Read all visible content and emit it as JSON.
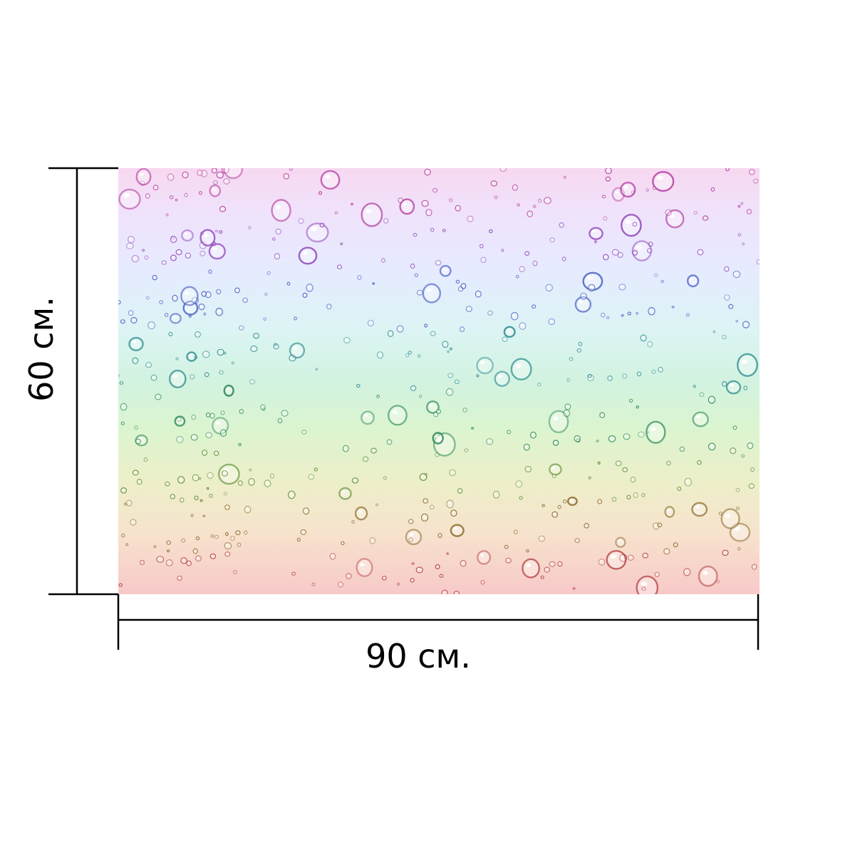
{
  "product": {
    "image_icon": "water-droplets-rainbow-image",
    "gradient_colors": [
      "#f7d8f0",
      "#e6ebff",
      "#d2f3e0",
      "#edefc9",
      "#f7c9c9"
    ]
  },
  "dimensions": {
    "height_label": "60 см.",
    "width_label": "90 см."
  }
}
